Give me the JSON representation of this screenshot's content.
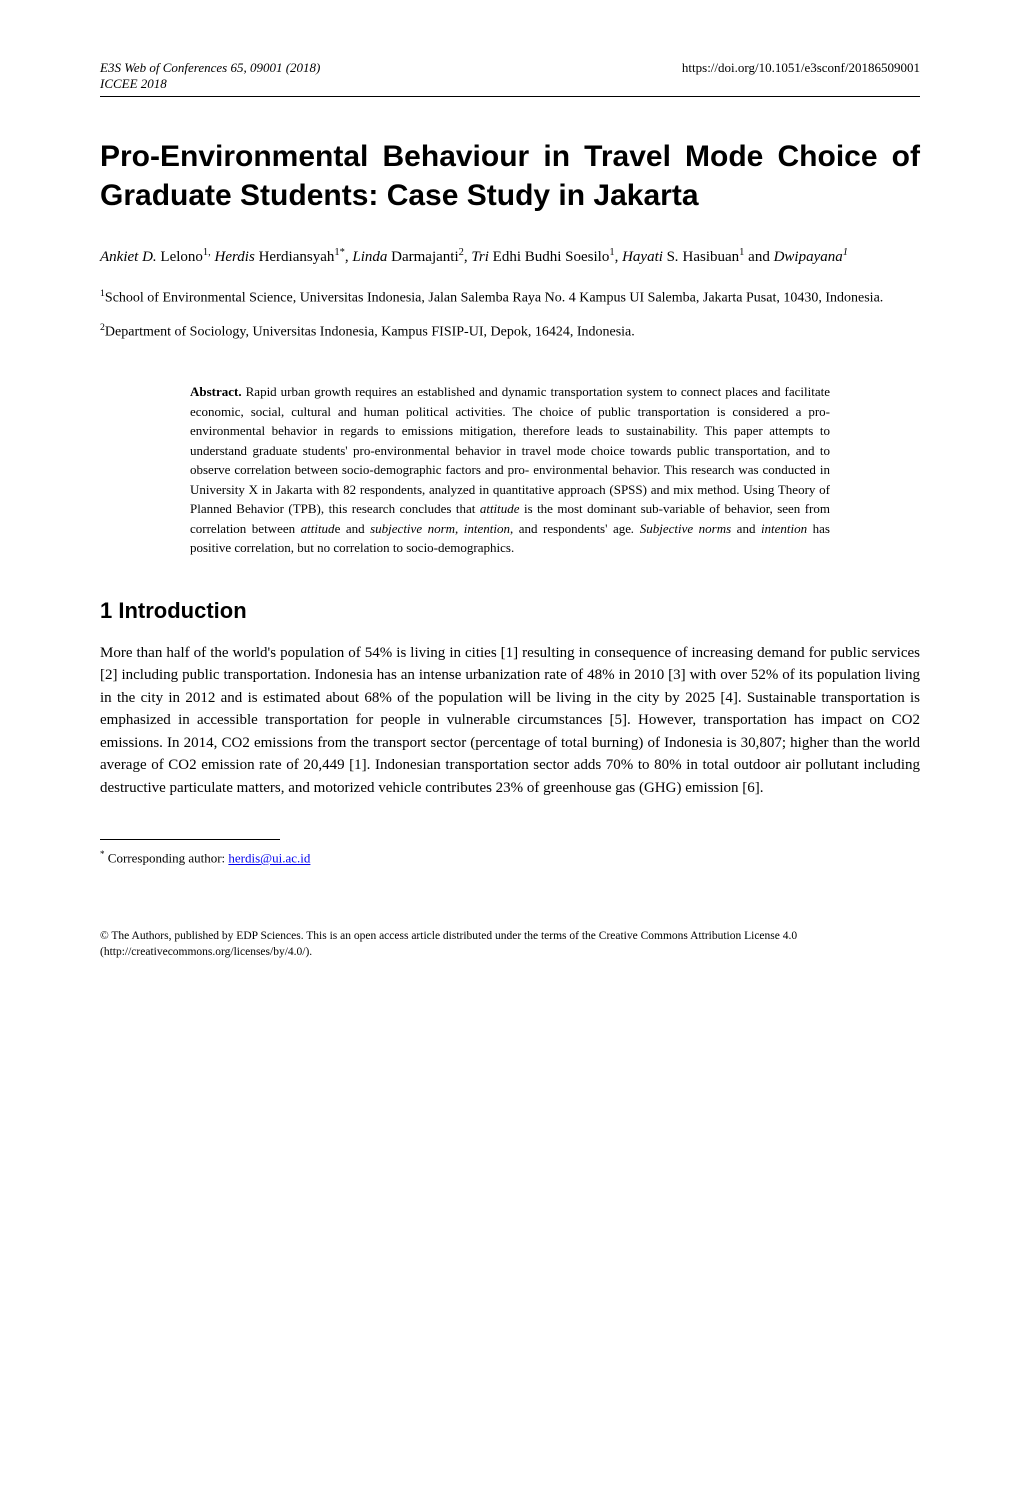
{
  "header": {
    "journal_line": "E3S Web of Conferences 65, 09001 (2018)",
    "conference_line": "ICCEE 2018",
    "doi_url": "https://doi.org/10.1051/e3sconf/20186509001"
  },
  "title": "Pro-Environmental Behaviour in Travel Mode Choice of Graduate Students: Case Study in Jakarta",
  "authors_html_parts": {
    "a1_first_it": "Ankiet D.",
    "a1_last": " Lelono",
    "a1_sup": "1,",
    "a2_first_it": " Herdis",
    "a2_last": " Herdiansyah",
    "a2_sup": "1*",
    "a3_first_it": "Linda",
    "a3_last": " Darmajanti",
    "a3_sup": "2",
    "a4_first_it": "Tri",
    "a4_last": " Edhi Budhi Soesilo",
    "a4_sup": "1",
    "a5_first_it": "Hayati",
    "a5_last": " S",
    "a5_last_dot": ".",
    "a5_last2": " Hasibuan",
    "a5_sup": "1",
    "a5_and": " and ",
    "a6_first_it": "Dwipayana",
    "a6_sup": "1"
  },
  "affiliations": {
    "aff1": "1School of Environmental Science, Universitas Indonesia, Jalan Salemba Raya No. 4 Kampus UI Salemba, Jakarta Pusat, 10430, Indonesia.",
    "aff2": "2Department of Sociology, Universitas Indonesia, Kampus FISIP-UI, Depok, 16424, Indonesia."
  },
  "abstract": {
    "label": "Abstract.",
    "text_parts": {
      "p1": " Rapid urban growth requires an established and dynamic transportation system to connect places and facilitate economic, social, cultural and human political activities. The choice of public transportation is considered a pro-environmental behavior in regards to emissions mitigation, therefore leads to sustainability. This paper attempts to understand graduate students' pro-environmental behavior in travel mode choice towards public transportation, and to observe correlation between socio-demographic factors and pro- environmental behavior. This research was conducted in University X in Jakarta with 82 respondents, analyzed in quantitative approach (SPSS) and mix method. Using Theory of Planned Behavior (TPB), this research concludes that ",
      "it1": "attitude",
      "p2": " is the most dominant sub-variable of behavior, seen from correlation between ",
      "it2": "attitud",
      "p3": "e and ",
      "it3": "subjective norm",
      "p4": ", ",
      "it4": "intention",
      "p5": ", and respondents' age",
      "it5": ". Subjective norms",
      "p6": " and ",
      "it6": "intention",
      "p7": " has positive correlation, but no correlation to socio-demographics."
    }
  },
  "section1": {
    "heading": "1 Introduction",
    "para1": "More than half of the world's population of 54% is living in cities [1] resulting in consequence of increasing demand for public services [2] including public transportation. Indonesia has an intense urbanization rate of 48% in 2010 [3] with over 52% of its population living in the city in 2012 and is estimated about 68% of the population will be living in the city by 2025 [4]. Sustainable transportation is emphasized in accessible transportation for people in vulnerable circumstances [5]. However, transportation has impact on CO2 emissions. In 2014, CO2 emissions from the transport sector (percentage of total burning) of Indonesia is 30,807; higher than the world average of CO2 emission rate of 20,449 [1]. Indonesian transportation sector adds 70% to 80% in total outdoor air pollutant including destructive particulate matters, and motorized vehicle contributes 23% of greenhouse gas (GHG) emission [6]."
  },
  "footnote": {
    "marker": "*",
    "text": " Corresponding author: ",
    "email": "herdis@ui.ac.id"
  },
  "copyright": "© The Authors, published by EDP Sciences. This is an open access article distributed under the terms of the Creative Commons Attribution License 4.0 (http://creativecommons.org/licenses/by/4.0/)."
}
